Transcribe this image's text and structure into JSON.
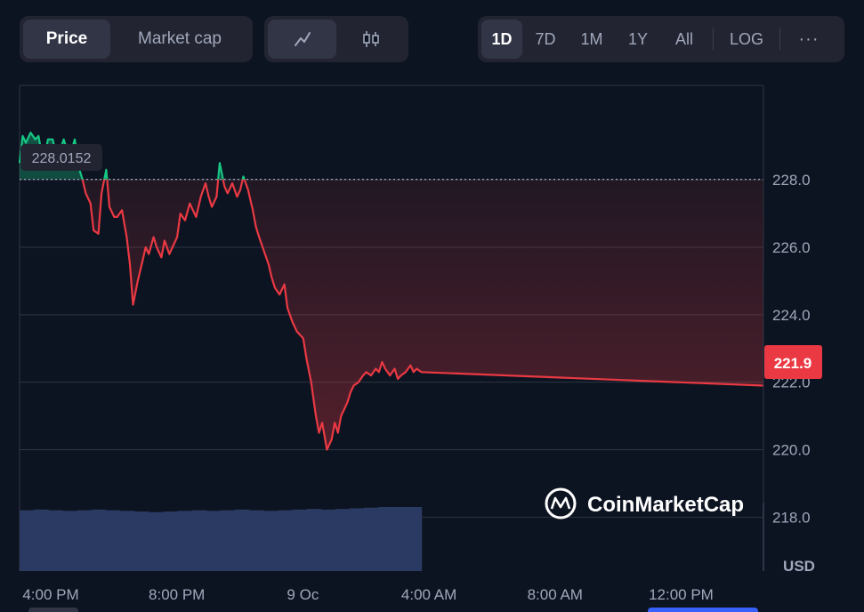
{
  "tabs": {
    "type": [
      {
        "label": "Price",
        "active": true
      },
      {
        "label": "Market cap",
        "active": false
      }
    ],
    "chart_style_icons": [
      "line-chart-icon",
      "candlestick-icon"
    ],
    "ranges": [
      {
        "label": "1D",
        "active": true
      },
      {
        "label": "7D",
        "active": false
      },
      {
        "label": "1M",
        "active": false
      },
      {
        "label": "1Y",
        "active": false
      },
      {
        "label": "All",
        "active": false
      }
    ],
    "log_label": "LOG",
    "more_label": "···"
  },
  "reference_price_label": "228.0152",
  "current_price_label": "221.9",
  "currency_label": "USD",
  "watermark": "CoinMarketCap",
  "colors": {
    "up": "#16c784",
    "down": "#ea3943",
    "grid": "#2f3542",
    "background": "#0d1421",
    "volume": "#2b3a63"
  },
  "chart_data": {
    "type": "area",
    "reference_price": 228.0152,
    "current_price": 221.9,
    "ylim": [
      216.4,
      230.8
    ],
    "y_ticks": [
      "228.0",
      "226.0",
      "224.0",
      "222.0",
      "220.0",
      "218.0"
    ],
    "y_tick_values": [
      228.0,
      226.0,
      224.0,
      222.0,
      220.0,
      218.0
    ],
    "x_ticks": [
      "4:00 PM",
      "8:00 PM",
      "9 Oc",
      "4:00 AM",
      "8:00 AM",
      "12:00 PM"
    ],
    "x_tick_hours": [
      0,
      4,
      8,
      12,
      16,
      20
    ],
    "x_range_hours": [
      0,
      23.6
    ],
    "series": [
      {
        "x": [
          0.0,
          0.1,
          0.2,
          0.35,
          0.5,
          0.6,
          0.75,
          0.9,
          1.05,
          1.2,
          1.4,
          1.5,
          1.6,
          1.75,
          1.9,
          2.0,
          2.1,
          2.25,
          2.35,
          2.5,
          2.6,
          2.75,
          2.85,
          3.0,
          3.1,
          3.25,
          3.4,
          3.5,
          3.6,
          3.75,
          3.9,
          4.0,
          4.1,
          4.25,
          4.35,
          4.5,
          4.6,
          4.75,
          4.9,
          5.0,
          5.1,
          5.25,
          5.4,
          5.5,
          5.6,
          5.75,
          5.9,
          6.0,
          6.1,
          6.25,
          6.35,
          6.5,
          6.6,
          6.75,
          6.9,
          7.0,
          7.1,
          7.25,
          7.4,
          7.5,
          7.6,
          7.75,
          7.9,
          8.0,
          8.1,
          8.25,
          8.4,
          8.5,
          8.65,
          8.8,
          9.0,
          9.1,
          9.25,
          9.4,
          9.5,
          9.6,
          9.75,
          9.9,
          10.0,
          10.1,
          10.2,
          10.3,
          10.4,
          10.5,
          10.6,
          10.75,
          10.9,
          11.0,
          11.15,
          11.3,
          11.4,
          11.5,
          11.6,
          11.75,
          11.9,
          12.0,
          12.1,
          12.25,
          12.4,
          12.5,
          12.6,
          12.75,
          23.6
        ],
        "values": [
          228.5,
          229.3,
          229.1,
          229.4,
          229.2,
          229.3,
          228.5,
          229.2,
          229.2,
          228.6,
          229.2,
          228.9,
          228.7,
          229.2,
          228.3,
          228.0,
          227.6,
          227.3,
          226.5,
          226.4,
          227.6,
          228.3,
          227.2,
          226.9,
          226.9,
          227.1,
          226.3,
          225.5,
          224.3,
          225.0,
          225.6,
          226.0,
          225.8,
          226.3,
          226.0,
          225.7,
          226.2,
          225.8,
          226.1,
          226.3,
          227.0,
          226.8,
          227.3,
          227.1,
          226.9,
          227.5,
          227.9,
          227.5,
          227.2,
          227.5,
          228.5,
          227.8,
          227.6,
          227.9,
          227.5,
          227.7,
          228.1,
          227.7,
          227.1,
          226.6,
          226.3,
          225.9,
          225.5,
          225.1,
          224.8,
          224.6,
          224.9,
          224.2,
          223.8,
          223.5,
          223.3,
          222.7,
          222.0,
          221.0,
          220.5,
          220.8,
          220.0,
          220.3,
          220.8,
          220.5,
          221.0,
          221.2,
          221.4,
          221.7,
          221.9,
          222.0,
          222.2,
          222.3,
          222.2,
          222.4,
          222.3,
          222.6,
          222.4,
          222.2,
          222.4,
          222.1,
          222.2,
          222.3,
          222.5,
          222.3,
          222.4,
          222.3,
          221.9
        ]
      }
    ],
    "volume": {
      "x_range_hours": [
        0,
        12.75
      ],
      "levels": [
        0.95,
        0.96,
        0.95,
        0.94,
        0.95,
        0.96,
        0.95,
        0.94,
        0.93,
        0.92,
        0.93,
        0.94,
        0.95,
        0.94,
        0.95,
        0.96,
        0.95,
        0.94,
        0.95,
        0.96,
        0.97,
        0.96,
        0.97,
        0.98,
        0.99,
        1.0,
        1.0,
        1.0
      ]
    }
  }
}
